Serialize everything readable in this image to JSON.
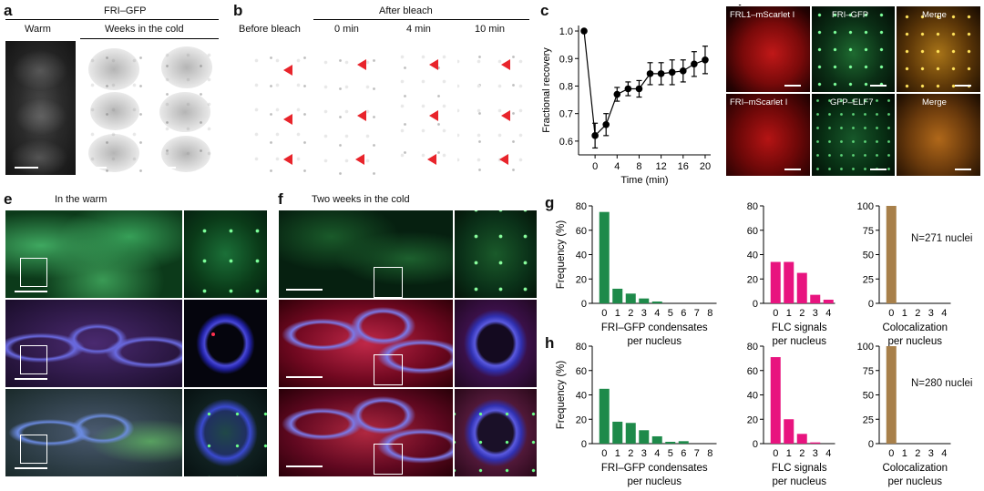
{
  "panels": {
    "a": {
      "letter": "a",
      "header": "FRI–GFP",
      "warm": "Warm",
      "cold": "Weeks in the cold",
      "img1": "1",
      "img2": "2"
    },
    "b": {
      "letter": "b",
      "before": "Before bleach",
      "after": "After bleach",
      "times": [
        "0 min",
        "4 min",
        "10 min"
      ]
    },
    "c": {
      "letter": "c"
    },
    "d": {
      "letter": "d",
      "row1": [
        "FRL1–mScarlet I",
        "FRI–GFP",
        "Merge"
      ],
      "row2": [
        "FRI–mScarlet I",
        "GFP–ELF7",
        "Merge"
      ]
    },
    "e": {
      "letter": "e",
      "title": "In the warm"
    },
    "f": {
      "letter": "f",
      "title": "Two weeks in the cold"
    },
    "g": {
      "letter": "g",
      "n_label": "N=271 nuclei"
    },
    "h": {
      "letter": "h",
      "n_label": "N=280 nuclei"
    }
  },
  "colors": {
    "green": "#1e8a4a",
    "magenta": "#e8147f",
    "brown": "#a8804a",
    "arrow": "#e8242b"
  },
  "chart_data": [
    {
      "id": "c",
      "type": "line",
      "x": [
        -2,
        0,
        2,
        4,
        6,
        8,
        10,
        12,
        14,
        16,
        18,
        20
      ],
      "y": [
        1.0,
        0.62,
        0.66,
        0.77,
        0.79,
        0.79,
        0.845,
        0.845,
        0.85,
        0.855,
        0.88,
        0.895
      ],
      "err": [
        0,
        0.045,
        0.04,
        0.025,
        0.025,
        0.03,
        0.04,
        0.04,
        0.045,
        0.04,
        0.045,
        0.05
      ],
      "xlabel": "Time (min)",
      "ylabel": "Fractional recovery",
      "xticks": [
        0,
        4,
        8,
        12,
        16,
        20
      ],
      "yticks": [
        0.6,
        0.7,
        0.8,
        0.9,
        1.0
      ],
      "xlim": [
        -3,
        21
      ],
      "ylim": [
        0.55,
        1.02
      ]
    },
    {
      "id": "g1",
      "type": "bar",
      "categories": [
        "0",
        "1",
        "2",
        "3",
        "4",
        "5",
        "6",
        "7",
        "8"
      ],
      "values": [
        75,
        12,
        8,
        4,
        1.5,
        0,
        0,
        0,
        0
      ],
      "ylim": [
        0,
        80
      ],
      "yticks": [
        0,
        20,
        40,
        60,
        80
      ],
      "ylabel": "Frequency (%)",
      "xlabel": [
        "FRI–GFP condensates",
        "per nucleus"
      ],
      "color": "green"
    },
    {
      "id": "g2",
      "type": "bar",
      "categories": [
        "0",
        "1",
        "2",
        "3",
        "4"
      ],
      "values": [
        34,
        34,
        25,
        7,
        3
      ],
      "ylim": [
        0,
        80
      ],
      "yticks": [
        0,
        20,
        40,
        60,
        80
      ],
      "xlabel": [
        "FLC signals",
        "per nucleus"
      ],
      "color": "magenta"
    },
    {
      "id": "g3",
      "type": "bar",
      "categories": [
        "0",
        "1",
        "2",
        "3",
        "4"
      ],
      "values": [
        100,
        0,
        0,
        0,
        0
      ],
      "ylim": [
        0,
        100
      ],
      "yticks": [
        0,
        25,
        50,
        75,
        100
      ],
      "xlabel": [
        "Colocalization",
        "per nucleus"
      ],
      "color": "brown"
    },
    {
      "id": "h1",
      "type": "bar",
      "categories": [
        "0",
        "1",
        "2",
        "3",
        "4",
        "5",
        "6",
        "7",
        "8"
      ],
      "values": [
        45,
        18,
        17,
        11,
        6,
        1.5,
        2,
        0,
        0
      ],
      "ylim": [
        0,
        80
      ],
      "yticks": [
        0,
        20,
        40,
        60,
        80
      ],
      "ylabel": "Frequency (%)",
      "xlabel": [
        "FRI–GFP condensates",
        "per nucleus"
      ],
      "color": "green"
    },
    {
      "id": "h2",
      "type": "bar",
      "categories": [
        "0",
        "1",
        "2",
        "3",
        "4"
      ],
      "values": [
        71,
        20,
        8,
        1,
        0
      ],
      "ylim": [
        0,
        80
      ],
      "yticks": [
        0,
        20,
        40,
        60,
        80
      ],
      "xlabel": [
        "FLC signals",
        "per nucleus"
      ],
      "color": "magenta"
    },
    {
      "id": "h3",
      "type": "bar",
      "categories": [
        "0",
        "1",
        "2",
        "3",
        "4"
      ],
      "values": [
        100,
        0,
        0,
        0,
        0
      ],
      "ylim": [
        0,
        100
      ],
      "yticks": [
        0,
        25,
        50,
        75,
        100
      ],
      "xlabel": [
        "Colocalization",
        "per nucleus"
      ],
      "color": "brown"
    }
  ]
}
